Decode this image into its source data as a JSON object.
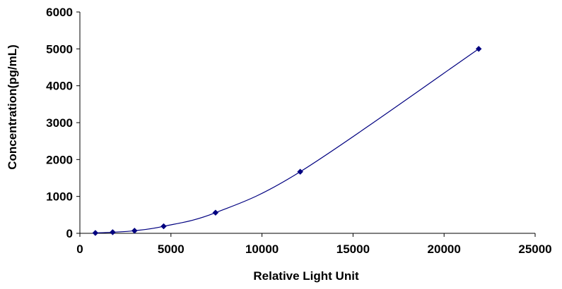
{
  "chart_data": {
    "type": "scatter",
    "title": "",
    "xlabel": "Relative Light Unit",
    "ylabel": "Concentration(pg/mL)",
    "xlim": [
      0,
      25000
    ],
    "ylim": [
      0,
      6000
    ],
    "xticks": [
      "0",
      "5000",
      "10000",
      "15000",
      "20000",
      "25000"
    ],
    "yticks": [
      "0",
      "1000",
      "2000",
      "3000",
      "4000",
      "5000",
      "6000"
    ],
    "grid": false,
    "legend": "none",
    "series": [
      {
        "color": "#000080",
        "marker": "diamond",
        "smooth_line": true,
        "points": [
          {
            "x": 850,
            "y": 10
          },
          {
            "x": 1800,
            "y": 30
          },
          {
            "x": 3000,
            "y": 70
          },
          {
            "x": 4600,
            "y": 190
          },
          {
            "x": 7450,
            "y": 560
          },
          {
            "x": 12100,
            "y": 1670
          },
          {
            "x": 21900,
            "y": 5000
          }
        ]
      }
    ]
  }
}
